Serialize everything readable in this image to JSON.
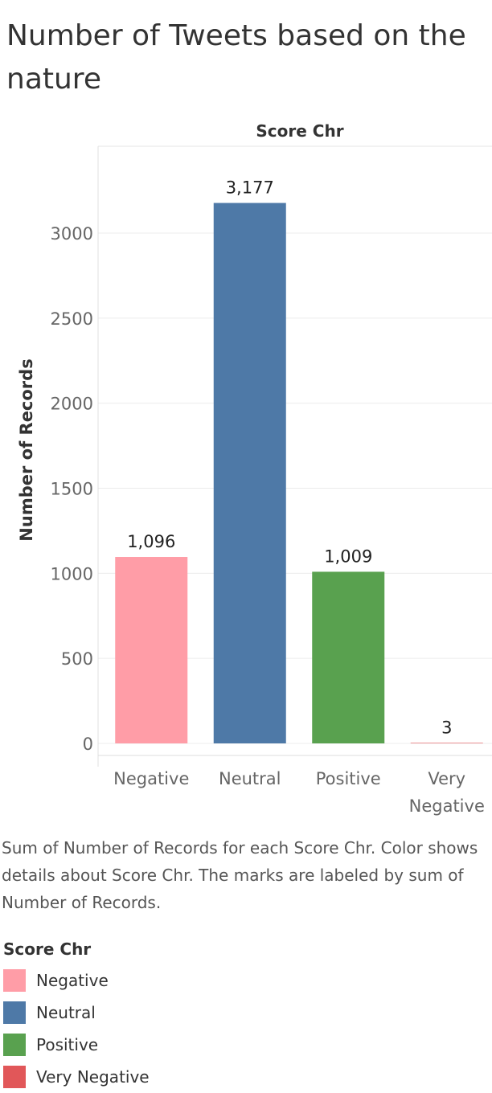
{
  "title": "Number of Tweets based on the nature",
  "caption": "Sum of Number of Records for each Score Chr.  Color shows details about Score Chr.  The marks are labeled by sum of Number of Records.",
  "legend": {
    "title": "Score Chr",
    "items": [
      {
        "label": "Negative",
        "color": "#ff9da7"
      },
      {
        "label": "Neutral",
        "color": "#4e79a7"
      },
      {
        "label": "Positive",
        "color": "#59a14f"
      },
      {
        "label": "Very Negative",
        "color": "#e15759"
      }
    ]
  },
  "chart_data": {
    "type": "bar",
    "title": "",
    "column_header": "Score Chr",
    "xlabel": "",
    "ylabel": "Number of Records",
    "ylim": [
      0,
      3450
    ],
    "yticks": [
      0,
      500,
      1000,
      1500,
      2000,
      2500,
      3000
    ],
    "grid": true,
    "legend_position": "bottom",
    "categories": [
      "Negative",
      "Neutral",
      "Positive",
      "Very Negative"
    ],
    "category_labels": [
      [
        "Negative"
      ],
      [
        "Neutral"
      ],
      [
        "Positive"
      ],
      [
        "Very",
        "Negative"
      ]
    ],
    "values": [
      1096,
      3177,
      1009,
      3
    ],
    "value_labels": [
      "1,096",
      "3,177",
      "1,009",
      "3"
    ],
    "colors": [
      "#ff9da7",
      "#4e79a7",
      "#59a14f",
      "#e15759"
    ]
  }
}
